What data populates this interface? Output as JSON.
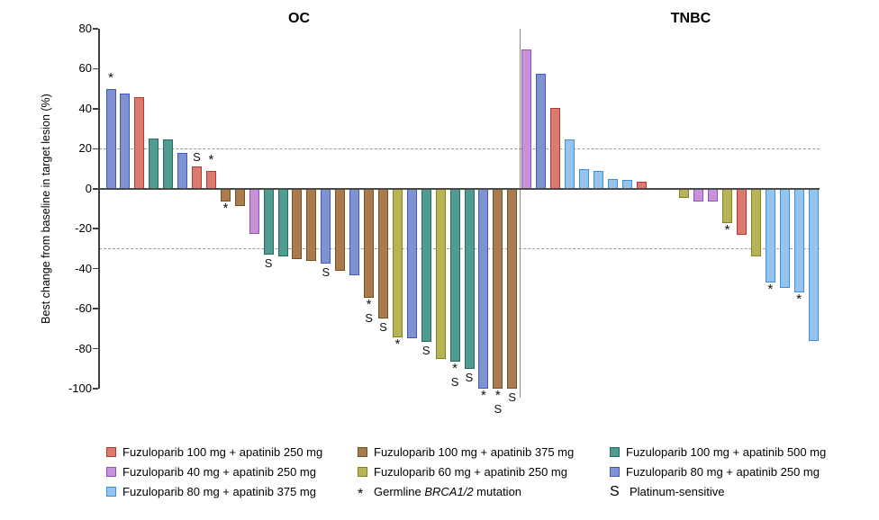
{
  "chart_data": {
    "type": "bar",
    "variant": "waterfall",
    "ylabel": "Best change from baseline in target lesion (%)",
    "ylim": [
      -100,
      80
    ],
    "yticks": [
      80,
      60,
      40,
      20,
      0,
      -20,
      -40,
      -60,
      -80,
      -100
    ],
    "reference_lines": [
      20,
      -30
    ],
    "grid": "off",
    "legend_position": "bottom",
    "mark_meanings": {
      "*": "Germline BRCA1/2 mutation",
      "S": "Platinum-sensitive"
    },
    "groups": {
      "f100a250": {
        "label": "Fuzuloparib 100 mg + apatinib 250 mg",
        "fill": "#DB7A6F",
        "stroke": "#B03A30"
      },
      "f100a375": {
        "label": "Fuzuloparib 100 mg + apatinib 375 mg",
        "fill": "#A97C4F",
        "stroke": "#77521F"
      },
      "f100a500": {
        "label": "Fuzuloparib 100 mg + apatinib 500 mg",
        "fill": "#4F9D92",
        "stroke": "#2A6B60"
      },
      "f40a250": {
        "label": "Fuzuloparib 40 mg + apatinib 250 mg",
        "fill": "#C693D8",
        "stroke": "#9A4FBF"
      },
      "f60a250": {
        "label": "Fuzuloparib 60 mg + apatinib 250 mg",
        "fill": "#B7B457",
        "stroke": "#83821F"
      },
      "f80a250": {
        "label": "Fuzuloparib 80 mg + apatinib 250 mg",
        "fill": "#8093D0",
        "stroke": "#4356C4"
      },
      "f80a375": {
        "label": "Fuzuloparib 80 mg + apatinib 375 mg",
        "fill": "#96C4EE",
        "stroke": "#3C8EE0"
      }
    },
    "panels": [
      {
        "label": "OC",
        "bars": [
          {
            "value": 50,
            "group": "f80a250",
            "mark": "*"
          },
          {
            "value": 47.5,
            "group": "f80a250"
          },
          {
            "value": 46,
            "group": "f100a250"
          },
          {
            "value": 25,
            "group": "f100a500"
          },
          {
            "value": 24.5,
            "group": "f100a500"
          },
          {
            "value": 18,
            "group": "f80a250"
          },
          {
            "value": 11,
            "group": "f100a250",
            "mark": "S"
          },
          {
            "value": 9,
            "group": "f100a250",
            "mark": "*"
          },
          {
            "value": -6.5,
            "group": "f100a375",
            "mark": "*"
          },
          {
            "value": -8.5,
            "group": "f100a375"
          },
          {
            "value": -22.5,
            "group": "f40a250"
          },
          {
            "value": -33,
            "group": "f100a500",
            "mark": "S"
          },
          {
            "value": -34,
            "group": "f100a500"
          },
          {
            "value": -35,
            "group": "f100a375"
          },
          {
            "value": -36,
            "group": "f100a375"
          },
          {
            "value": -37.5,
            "group": "f80a250",
            "mark": "S"
          },
          {
            "value": -41,
            "group": "f100a375"
          },
          {
            "value": -43.5,
            "group": "f80a250"
          },
          {
            "value": -54.5,
            "group": "f100a375",
            "mark": "*S"
          },
          {
            "value": -65,
            "group": "f100a375",
            "mark": "S"
          },
          {
            "value": -74.5,
            "group": "f60a250",
            "mark": "*"
          },
          {
            "value": -75,
            "group": "f80a250"
          },
          {
            "value": -76.5,
            "group": "f100a500",
            "mark": "S"
          },
          {
            "value": -85,
            "group": "f60a250"
          },
          {
            "value": -86.5,
            "group": "f100a500",
            "mark": "*S"
          },
          {
            "value": -90,
            "group": "f100a500",
            "mark": "S"
          },
          {
            "value": -100,
            "group": "f80a250",
            "mark": "*"
          },
          {
            "value": -100,
            "group": "f100a375",
            "mark": "*S"
          },
          {
            "value": -100,
            "group": "f100a375",
            "mark": "S"
          }
        ]
      },
      {
        "label": "TNBC",
        "bars": [
          {
            "value": 69.5,
            "group": "f40a250"
          },
          {
            "value": 57.5,
            "group": "f80a250"
          },
          {
            "value": 40.5,
            "group": "f100a250"
          },
          {
            "value": 24.5,
            "group": "f80a375"
          },
          {
            "value": 10,
            "group": "f80a375"
          },
          {
            "value": 9,
            "group": "f80a375"
          },
          {
            "value": 5,
            "group": "f80a375"
          },
          {
            "value": 4.5,
            "group": "f80a375"
          },
          {
            "value": 3.5,
            "group": "f100a250"
          },
          {
            "gap": true
          },
          {
            "gap": true
          },
          {
            "value": -4.5,
            "group": "f60a250"
          },
          {
            "value": -6.5,
            "group": "f40a250"
          },
          {
            "value": -6.5,
            "group": "f40a250"
          },
          {
            "value": -17,
            "group": "f60a250",
            "mark": "*"
          },
          {
            "value": -23,
            "group": "f100a250"
          },
          {
            "value": -34,
            "group": "f60a250"
          },
          {
            "value": -47,
            "group": "f80a375",
            "mark": "*"
          },
          {
            "value": -49.5,
            "group": "f80a375"
          },
          {
            "value": -52,
            "group": "f80a375",
            "mark": "*"
          },
          {
            "value": -76,
            "group": "f80a375"
          }
        ]
      }
    ],
    "legend": {
      "items": [
        {
          "row": 0,
          "col": 0,
          "group": "f100a250"
        },
        {
          "row": 0,
          "col": 1,
          "group": "f100a375"
        },
        {
          "row": 0,
          "col": 2,
          "group": "f100a500"
        },
        {
          "row": 1,
          "col": 0,
          "group": "f40a250"
        },
        {
          "row": 1,
          "col": 1,
          "group": "f60a250"
        },
        {
          "row": 1,
          "col": 2,
          "group": "f80a250"
        },
        {
          "row": 2,
          "col": 0,
          "group": "f80a375"
        },
        {
          "row": 2,
          "col": 1,
          "symbol": "*",
          "label_parts": [
            "Germline ",
            "BRCA1/2",
            " mutation"
          ],
          "italic_part": 1
        },
        {
          "row": 2,
          "col": 2,
          "symbol": "S",
          "label": "Platinum-sensitive"
        }
      ]
    }
  }
}
